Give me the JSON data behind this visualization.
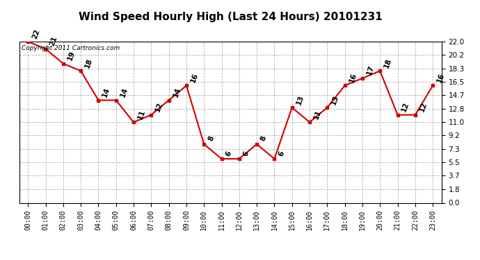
{
  "title": "Wind Speed Hourly High (Last 24 Hours) 20101231",
  "copyright": "Copyright 2011 Cartronics.com",
  "hours": [
    "00:00",
    "01:00",
    "02:00",
    "03:00",
    "04:00",
    "05:00",
    "06:00",
    "07:00",
    "08:00",
    "09:00",
    "10:00",
    "11:00",
    "12:00",
    "13:00",
    "14:00",
    "15:00",
    "16:00",
    "17:00",
    "18:00",
    "19:00",
    "20:00",
    "21:00",
    "22:00",
    "23:00"
  ],
  "values": [
    22,
    21,
    19,
    18,
    14,
    14,
    11,
    12,
    14,
    16,
    8,
    6,
    6,
    8,
    6,
    13,
    11,
    13,
    16,
    17,
    18,
    12,
    12,
    16
  ],
  "line_color": "#cc0000",
  "marker_color": "#cc0000",
  "bg_color": "#ffffff",
  "grid_color": "#b0b0b0",
  "yticks": [
    0.0,
    1.8,
    3.7,
    5.5,
    7.3,
    9.2,
    11.0,
    12.8,
    14.7,
    16.5,
    18.3,
    20.2,
    22.0
  ],
  "ylim": [
    0.0,
    22.0
  ],
  "title_fontsize": 11,
  "annotation_fontsize": 7.5,
  "copyright_fontsize": 6.5,
  "tick_fontsize": 7.0,
  "ytick_fontsize": 7.5
}
